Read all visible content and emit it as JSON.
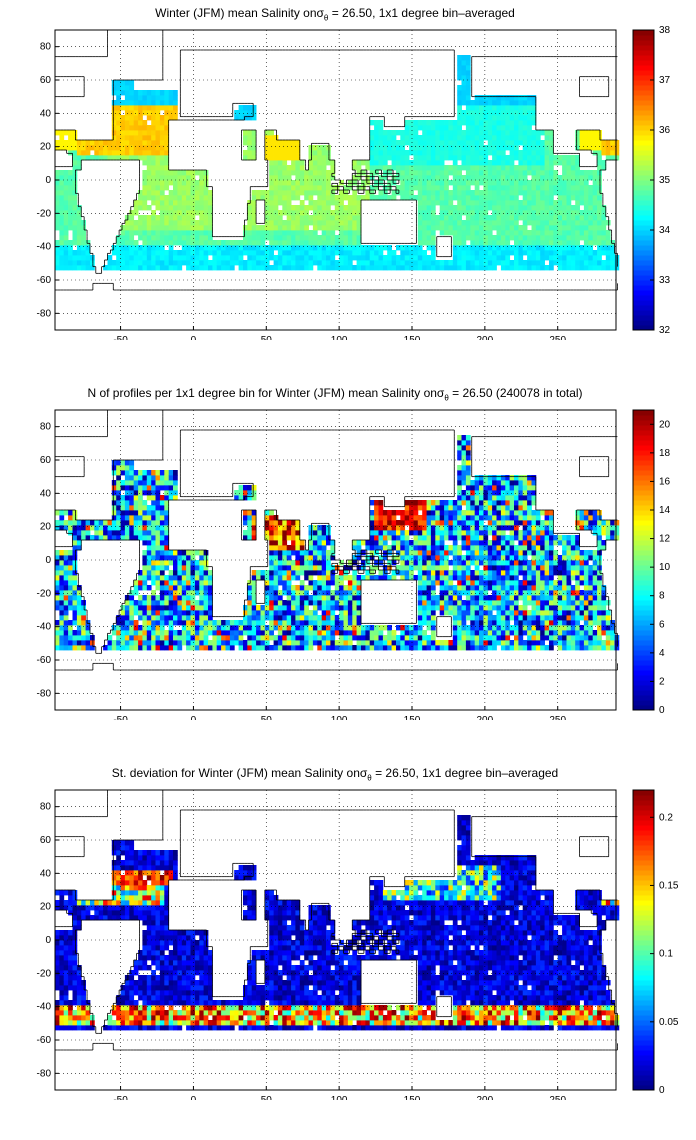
{
  "chart_data": [
    {
      "type": "heatmap",
      "title": "Winter (JFM) mean Salinity on",
      "title_sigma": "σ",
      "title_sub": "θ",
      "title_rest": " = 26.50, 1x1 degree bin–averaged",
      "xlim": [
        -95,
        290
      ],
      "ylim": [
        -90,
        90
      ],
      "xticks": [
        -50,
        0,
        50,
        100,
        150,
        200,
        250
      ],
      "yticks": [
        80,
        60,
        40,
        20,
        0,
        -20,
        -40,
        -60,
        -80
      ],
      "colorbar": {
        "min": 32,
        "max": 38,
        "ticks": [
          38,
          37,
          36,
          35,
          34,
          33,
          32
        ]
      },
      "grid": true
    },
    {
      "type": "heatmap",
      "title": "N of profiles per 1x1 degree bin for Winter (JFM) mean Salinity on",
      "title_sigma": "σ",
      "title_sub": "θ",
      "title_rest": " = 26.50 (240078 in total)",
      "xlim": [
        -95,
        290
      ],
      "ylim": [
        -90,
        90
      ],
      "xticks": [
        -50,
        0,
        50,
        100,
        150,
        200,
        250
      ],
      "yticks": [
        80,
        60,
        40,
        20,
        0,
        -20,
        -40,
        -60,
        -80
      ],
      "colorbar": {
        "min": 0,
        "max": 21,
        "ticks": [
          20,
          18,
          16,
          14,
          12,
          10,
          8,
          6,
          4,
          2,
          0
        ]
      },
      "grid": true
    },
    {
      "type": "heatmap",
      "title": "St. deviation for Winter (JFM) mean Salinity on",
      "title_sigma": "σ",
      "title_sub": "θ",
      "title_rest": " = 26.50, 1x1 degree bin–averaged",
      "xlim": [
        -95,
        290
      ],
      "ylim": [
        -90,
        90
      ],
      "xticks": [
        -50,
        0,
        50,
        100,
        150,
        200,
        250
      ],
      "yticks": [
        80,
        60,
        40,
        20,
        0,
        -20,
        -40,
        -60,
        -80
      ],
      "colorbar": {
        "min": 0,
        "max": 0.22,
        "ticks": [
          0.2,
          0.15,
          0.1,
          0.05,
          0
        ]
      },
      "grid": true
    }
  ]
}
